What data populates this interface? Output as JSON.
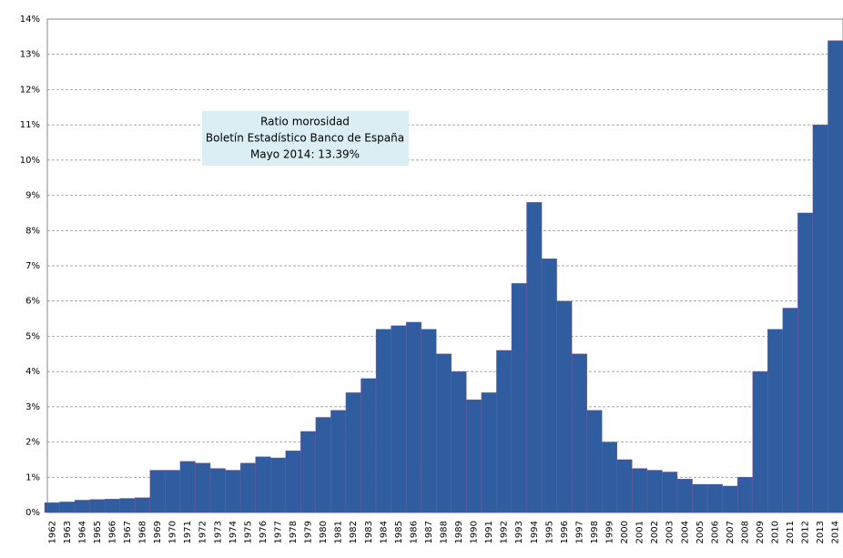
{
  "chart_data": {
    "type": "bar",
    "annotation": [
      "Ratio morosidad",
      "Boletín Estadístico Banco de España",
      "Mayo 2014: 13.39%"
    ],
    "categories": [
      "1962",
      "1963",
      "1964",
      "1965",
      "1966",
      "1967",
      "1968",
      "1969",
      "1970",
      "1971",
      "1972",
      "1973",
      "1974",
      "1975",
      "1976",
      "1977",
      "1978",
      "1979",
      "1980",
      "1981",
      "1982",
      "1983",
      "1984",
      "1985",
      "1986",
      "1987",
      "1988",
      "1989",
      "1990",
      "1991",
      "1992",
      "1993",
      "1994",
      "1995",
      "1996",
      "1997",
      "1998",
      "1999",
      "2000",
      "2001",
      "2002",
      "2003",
      "2004",
      "2005",
      "2006",
      "2007",
      "2008",
      "2009",
      "2010",
      "2011",
      "2012",
      "2013",
      "2014"
    ],
    "values": [
      0.28,
      0.3,
      0.35,
      0.37,
      0.38,
      0.4,
      0.42,
      1.2,
      1.2,
      1.45,
      1.4,
      1.25,
      1.2,
      1.4,
      1.58,
      1.55,
      1.75,
      2.3,
      2.7,
      2.9,
      3.4,
      3.8,
      5.2,
      5.3,
      5.4,
      5.2,
      4.5,
      4.0,
      3.2,
      3.4,
      4.6,
      6.5,
      8.8,
      7.2,
      6.0,
      4.5,
      2.9,
      2.0,
      1.5,
      1.25,
      1.2,
      1.15,
      0.95,
      0.8,
      0.8,
      0.75,
      1.0,
      4.0,
      5.2,
      5.8,
      8.5,
      11.0,
      13.39
    ],
    "color": "#2f5d9f",
    "ylim": [
      0,
      14
    ],
    "yticks": [
      {
        "value": 0,
        "label": "0%"
      },
      {
        "value": 1,
        "label": "1%"
      },
      {
        "value": 2,
        "label": "2%"
      },
      {
        "value": 3,
        "label": "3%"
      },
      {
        "value": 4,
        "label": "4%"
      },
      {
        "value": 5,
        "label": "5%"
      },
      {
        "value": 6,
        "label": "6%"
      },
      {
        "value": 7,
        "label": "7%"
      },
      {
        "value": 8,
        "label": "8%"
      },
      {
        "value": 9,
        "label": "9%"
      },
      {
        "value": 10,
        "label": "10%"
      },
      {
        "value": 11,
        "label": "11%"
      },
      {
        "value": 12,
        "label": "12%"
      },
      {
        "value": 13,
        "label": "13%"
      },
      {
        "value": 14,
        "label": "14%"
      }
    ],
    "grid": true
  }
}
